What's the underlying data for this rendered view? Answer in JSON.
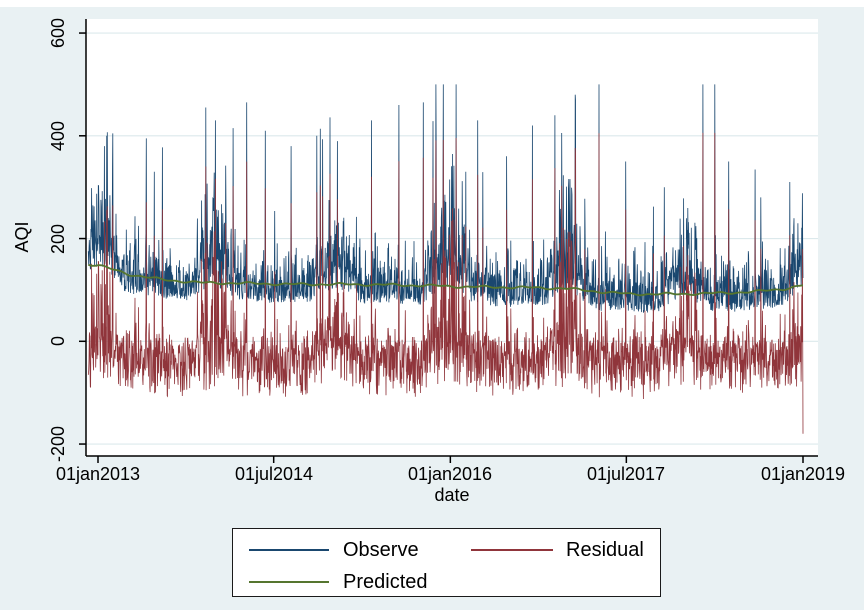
{
  "figure": {
    "outer_bg": "#ffffff",
    "inner_bg": "#e9f1f3"
  },
  "chart_data": {
    "type": "line",
    "title": "",
    "xlabel": "date",
    "ylabel": "AQI",
    "x_ticks": [
      {
        "label": "01jan2013",
        "day": 0
      },
      {
        "label": "01jul2014",
        "day": 546
      },
      {
        "label": "01jan2016",
        "day": 1095
      },
      {
        "label": "01jul2017",
        "day": 1642
      },
      {
        "label": "01jan2019",
        "day": 2191
      }
    ],
    "y_ticks": [
      {
        "label": "600",
        "value": 600
      },
      {
        "label": "400",
        "value": 400
      },
      {
        "label": "200",
        "value": 200
      },
      {
        "label": "0",
        "value": 0
      },
      {
        "label": "-200",
        "value": -200
      }
    ],
    "ylim": [
      -223,
      627
    ],
    "x_range_days": [
      -30,
      2191
    ],
    "grid": true,
    "legend_position": "bottom",
    "colors": {
      "plot_bg": "#ffffff",
      "grid": "#dce9ec",
      "axis": "#000000"
    },
    "series": [
      {
        "name": "Observe",
        "color": "#1a476f",
        "kind": "daily-observed-aqi",
        "min": 36,
        "max": 500,
        "spikes": [
          [
            20,
            380
          ],
          [
            27,
            400
          ],
          [
            45,
            340
          ],
          [
            150,
            395
          ],
          [
            175,
            330
          ],
          [
            335,
            455
          ],
          [
            365,
            430
          ],
          [
            420,
            415
          ],
          [
            462,
            465
          ],
          [
            520,
            410
          ],
          [
            600,
            380
          ],
          [
            680,
            400
          ],
          [
            850,
            430
          ],
          [
            935,
            460
          ],
          [
            1011,
            465
          ],
          [
            1050,
            500
          ],
          [
            1073,
            500
          ],
          [
            1113,
            500
          ],
          [
            1180,
            430
          ],
          [
            1270,
            360
          ],
          [
            1350,
            420
          ],
          [
            1420,
            440
          ],
          [
            1483,
            480
          ],
          [
            1557,
            500
          ],
          [
            1640,
            350
          ],
          [
            1760,
            300
          ],
          [
            1880,
            500
          ],
          [
            1917,
            500
          ],
          [
            1960,
            350
          ],
          [
            2060,
            280
          ],
          [
            2150,
            310
          ]
        ]
      },
      {
        "name": "Residual",
        "color": "#90353b",
        "kind": "model-residual",
        "range": [
          -185,
          420
        ],
        "end_dip": -180
      },
      {
        "name": "Predicted",
        "color": "#55752f",
        "kind": "smooth-trend",
        "anchors": [
          [
            -30,
            150
          ],
          [
            0,
            148
          ],
          [
            100,
            130
          ],
          [
            200,
            120
          ],
          [
            320,
            114
          ],
          [
            450,
            113
          ],
          [
            600,
            111
          ],
          [
            750,
            111
          ],
          [
            900,
            110
          ],
          [
            1050,
            108
          ],
          [
            1150,
            106
          ],
          [
            1300,
            105
          ],
          [
            1450,
            103
          ],
          [
            1550,
            97
          ],
          [
            1650,
            92
          ],
          [
            1800,
            92
          ],
          [
            1950,
            94
          ],
          [
            2050,
            97
          ],
          [
            2130,
            102
          ],
          [
            2191,
            109
          ]
        ]
      }
    ],
    "gen": {
      "seed": 20130101,
      "winter_amp": [
        1.0,
        1.05,
        1.0,
        1.25,
        1.1,
        1.0,
        0.85
      ]
    }
  }
}
